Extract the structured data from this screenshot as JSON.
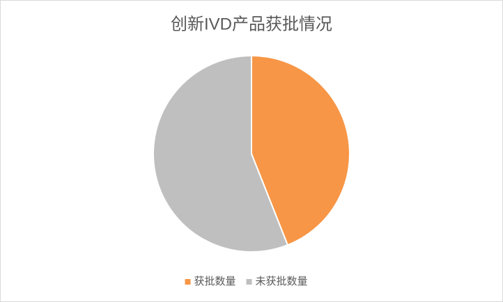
{
  "chart_data": {
    "type": "pie",
    "title": "创新IVD产品获批情况",
    "categories": [
      "获批数量",
      "未获批数量"
    ],
    "values": [
      44,
      56
    ],
    "colors": [
      "#F79646",
      "#BFBFBF"
    ],
    "legend": "bottom"
  }
}
